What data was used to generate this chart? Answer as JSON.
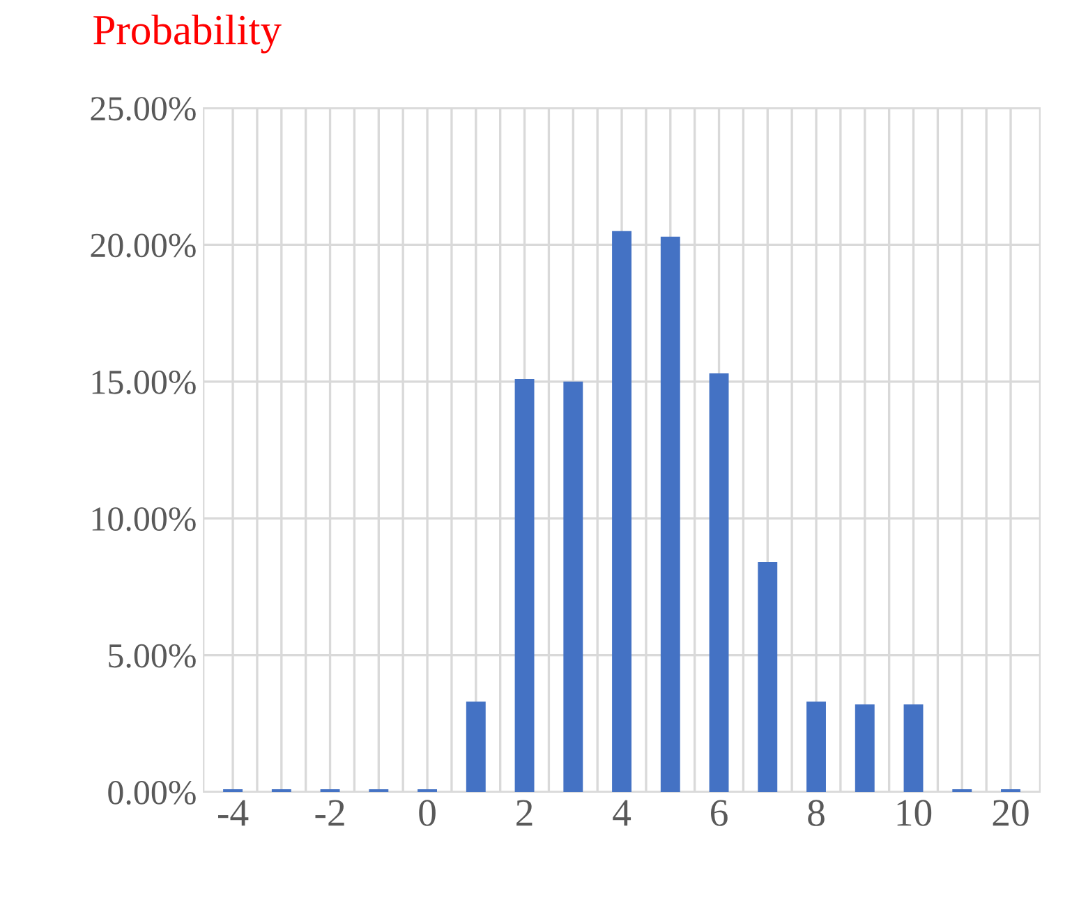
{
  "chart_data": {
    "type": "bar",
    "title": "Probability",
    "categories": [
      "-4",
      null,
      "-2",
      null,
      "0",
      null,
      "2",
      null,
      "4",
      null,
      "6",
      null,
      "8",
      null,
      "10",
      null,
      "20"
    ],
    "values": [
      0.1,
      0.1,
      0.1,
      0.1,
      0.1,
      3.3,
      15.1,
      15.0,
      20.5,
      20.3,
      15.3,
      8.4,
      3.3,
      3.2,
      3.2,
      0.1,
      0.1
    ],
    "color": "#4472c4",
    "ylim": [
      0,
      25
    ],
    "yticks": [
      {
        "value": 0,
        "label": "0.00%"
      },
      {
        "value": 5,
        "label": "5.00%"
      },
      {
        "value": 10,
        "label": "10.00%"
      },
      {
        "value": 15,
        "label": "15.00%"
      },
      {
        "value": 20,
        "label": "20.00%"
      },
      {
        "value": 25,
        "label": "25.00%"
      }
    ],
    "grid": true
  }
}
